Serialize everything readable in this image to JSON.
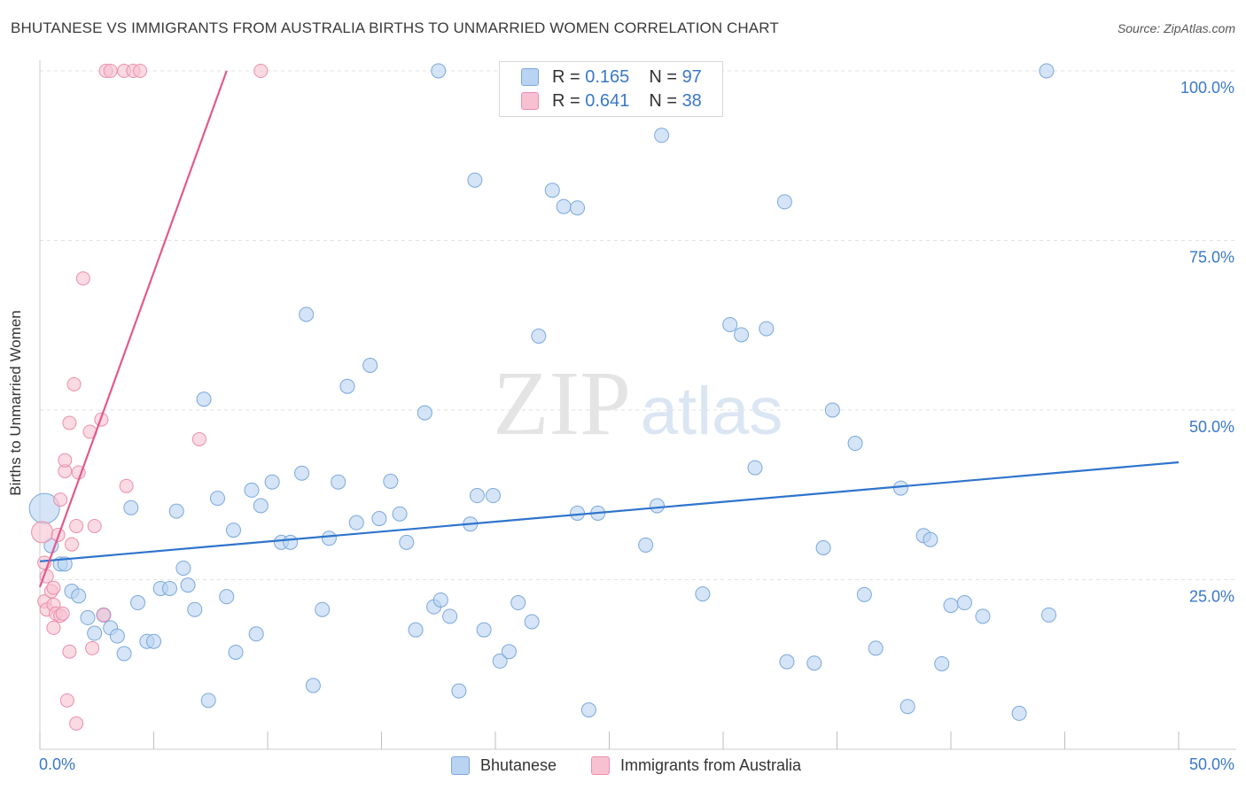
{
  "header": {
    "title": "BHUTANESE VS IMMIGRANTS FROM AUSTRALIA BIRTHS TO UNMARRIED WOMEN CORRELATION CHART",
    "source": "Source: ZipAtlas.com"
  },
  "watermark": {
    "zip": "ZIP",
    "atlas": "atlas"
  },
  "legend": {
    "rows": [
      {
        "r_label": "R =",
        "r_value": "0.165",
        "n_label": "N =",
        "n_value": "97"
      },
      {
        "r_label": "R =",
        "r_value": "0.641",
        "n_label": "N =",
        "n_value": "38"
      }
    ],
    "bottom": [
      "Bhutanese",
      "Immigrants from Australia"
    ]
  },
  "colors": {
    "blue_fill": "#b9d3f2",
    "blue_stroke": "#7aa8dc",
    "blue_line": "#2f74cc",
    "pink_fill": "#f7c1d1",
    "pink_stroke": "#ec8eab",
    "pink_line": "#e2598c",
    "axis_text": "#3a78c7"
  },
  "chart_data": {
    "type": "scatter",
    "title": "BHUTANESE VS IMMIGRANTS FROM AUSTRALIA BIRTHS TO UNMARRIED WOMEN CORRELATION CHART",
    "xlabel": "",
    "ylabel": "Births to Unmarried Women",
    "xlim": [
      0,
      50
    ],
    "ylim": [
      0,
      103
    ],
    "x_tick_labels": [
      "0.0%",
      "50.0%"
    ],
    "y_ticks": [
      25,
      50,
      75,
      100
    ],
    "y_tick_labels": [
      "25.0%",
      "50.0%",
      "75.0%",
      "100.0%"
    ],
    "grid": true,
    "legend_position": "top-center",
    "series": [
      {
        "name": "Bhutanese",
        "r": 0.165,
        "n": 97,
        "trend": {
          "x": [
            0,
            50
          ],
          "y": [
            27.7,
            42.3
          ]
        },
        "points": [
          [
            0.2,
            35.5
          ],
          [
            0.5,
            30.0
          ],
          [
            0.9,
            27.3
          ],
          [
            1.1,
            27.3
          ],
          [
            1.4,
            23.3
          ],
          [
            1.7,
            22.6
          ],
          [
            2.1,
            19.4
          ],
          [
            2.4,
            17.1
          ],
          [
            2.8,
            19.8
          ],
          [
            3.1,
            17.9
          ],
          [
            3.4,
            16.7
          ],
          [
            3.7,
            14.1
          ],
          [
            4.0,
            35.6
          ],
          [
            4.3,
            21.6
          ],
          [
            4.7,
            15.9
          ],
          [
            5.0,
            15.9
          ],
          [
            5.3,
            23.7
          ],
          [
            5.7,
            23.7
          ],
          [
            6.0,
            35.1
          ],
          [
            6.3,
            26.7
          ],
          [
            6.5,
            24.2
          ],
          [
            6.8,
            20.6
          ],
          [
            7.2,
            51.6
          ],
          [
            7.4,
            7.2
          ],
          [
            7.8,
            37.0
          ],
          [
            8.2,
            22.5
          ],
          [
            8.5,
            32.3
          ],
          [
            8.6,
            14.3
          ],
          [
            9.3,
            38.2
          ],
          [
            9.5,
            17.0
          ],
          [
            9.7,
            35.9
          ],
          [
            10.2,
            39.4
          ],
          [
            10.6,
            30.5
          ],
          [
            11.0,
            30.5
          ],
          [
            11.5,
            40.7
          ],
          [
            11.7,
            64.1
          ],
          [
            12.0,
            9.4
          ],
          [
            12.4,
            20.6
          ],
          [
            12.7,
            31.1
          ],
          [
            13.1,
            39.4
          ],
          [
            13.5,
            53.5
          ],
          [
            13.9,
            33.4
          ],
          [
            14.5,
            56.6
          ],
          [
            14.9,
            34.0
          ],
          [
            15.4,
            39.5
          ],
          [
            15.8,
            34.7
          ],
          [
            16.1,
            30.5
          ],
          [
            16.5,
            17.6
          ],
          [
            16.9,
            49.6
          ],
          [
            17.3,
            21.0
          ],
          [
            17.6,
            22.0
          ],
          [
            17.5,
            100.0
          ],
          [
            18.0,
            19.6
          ],
          [
            18.4,
            8.6
          ],
          [
            18.9,
            33.2
          ],
          [
            19.1,
            83.9
          ],
          [
            19.2,
            37.4
          ],
          [
            19.5,
            17.6
          ],
          [
            19.9,
            37.4
          ],
          [
            20.2,
            13.0
          ],
          [
            20.6,
            14.4
          ],
          [
            21.0,
            21.6
          ],
          [
            21.6,
            18.8
          ],
          [
            21.9,
            60.9
          ],
          [
            22.5,
            82.4
          ],
          [
            23.0,
            80.0
          ],
          [
            23.6,
            79.8
          ],
          [
            23.6,
            34.8
          ],
          [
            24.1,
            5.8
          ],
          [
            24.5,
            34.8
          ],
          [
            26.6,
            30.1
          ],
          [
            27.1,
            35.9
          ],
          [
            27.3,
            90.5
          ],
          [
            29.1,
            22.9
          ],
          [
            30.3,
            62.6
          ],
          [
            30.8,
            61.1
          ],
          [
            31.4,
            41.5
          ],
          [
            31.9,
            62.0
          ],
          [
            32.7,
            80.7
          ],
          [
            32.8,
            12.9
          ],
          [
            34.0,
            12.7
          ],
          [
            34.4,
            29.7
          ],
          [
            34.8,
            50.0
          ],
          [
            35.8,
            45.1
          ],
          [
            36.2,
            22.8
          ],
          [
            36.7,
            14.9
          ],
          [
            37.8,
            38.5
          ],
          [
            38.1,
            6.3
          ],
          [
            38.8,
            31.5
          ],
          [
            39.1,
            30.9
          ],
          [
            39.6,
            12.6
          ],
          [
            40.0,
            21.2
          ],
          [
            40.6,
            21.6
          ],
          [
            41.4,
            19.6
          ],
          [
            43.0,
            5.3
          ],
          [
            44.2,
            100.0
          ],
          [
            44.3,
            19.8
          ]
        ]
      },
      {
        "name": "Immigrants from Australia",
        "r": 0.641,
        "n": 38,
        "trend": {
          "x": [
            0,
            8.2
          ],
          "y": [
            23.9,
            100.0
          ]
        },
        "points": [
          [
            0.1,
            32.0
          ],
          [
            0.2,
            27.5
          ],
          [
            0.2,
            21.8
          ],
          [
            0.3,
            25.5
          ],
          [
            0.3,
            20.6
          ],
          [
            0.5,
            23.3
          ],
          [
            0.6,
            17.9
          ],
          [
            0.6,
            23.8
          ],
          [
            0.6,
            21.3
          ],
          [
            0.7,
            20.0
          ],
          [
            0.8,
            31.6
          ],
          [
            0.9,
            36.8
          ],
          [
            0.9,
            19.7
          ],
          [
            1.0,
            20.0
          ],
          [
            1.1,
            41.0
          ],
          [
            1.1,
            42.6
          ],
          [
            1.2,
            7.2
          ],
          [
            1.3,
            14.4
          ],
          [
            1.3,
            48.1
          ],
          [
            1.4,
            30.2
          ],
          [
            1.5,
            53.8
          ],
          [
            1.6,
            32.9
          ],
          [
            1.7,
            40.8
          ],
          [
            1.9,
            69.4
          ],
          [
            2.2,
            46.8
          ],
          [
            2.3,
            14.9
          ],
          [
            2.4,
            32.9
          ],
          [
            2.7,
            48.6
          ],
          [
            2.8,
            19.8
          ],
          [
            2.9,
            100.0
          ],
          [
            3.1,
            100.0
          ],
          [
            3.7,
            100.0
          ],
          [
            3.8,
            38.8
          ],
          [
            4.1,
            100.0
          ],
          [
            4.4,
            100.0
          ],
          [
            7.0,
            45.7
          ],
          [
            9.7,
            100.0
          ],
          [
            1.6,
            3.8
          ]
        ]
      }
    ]
  }
}
